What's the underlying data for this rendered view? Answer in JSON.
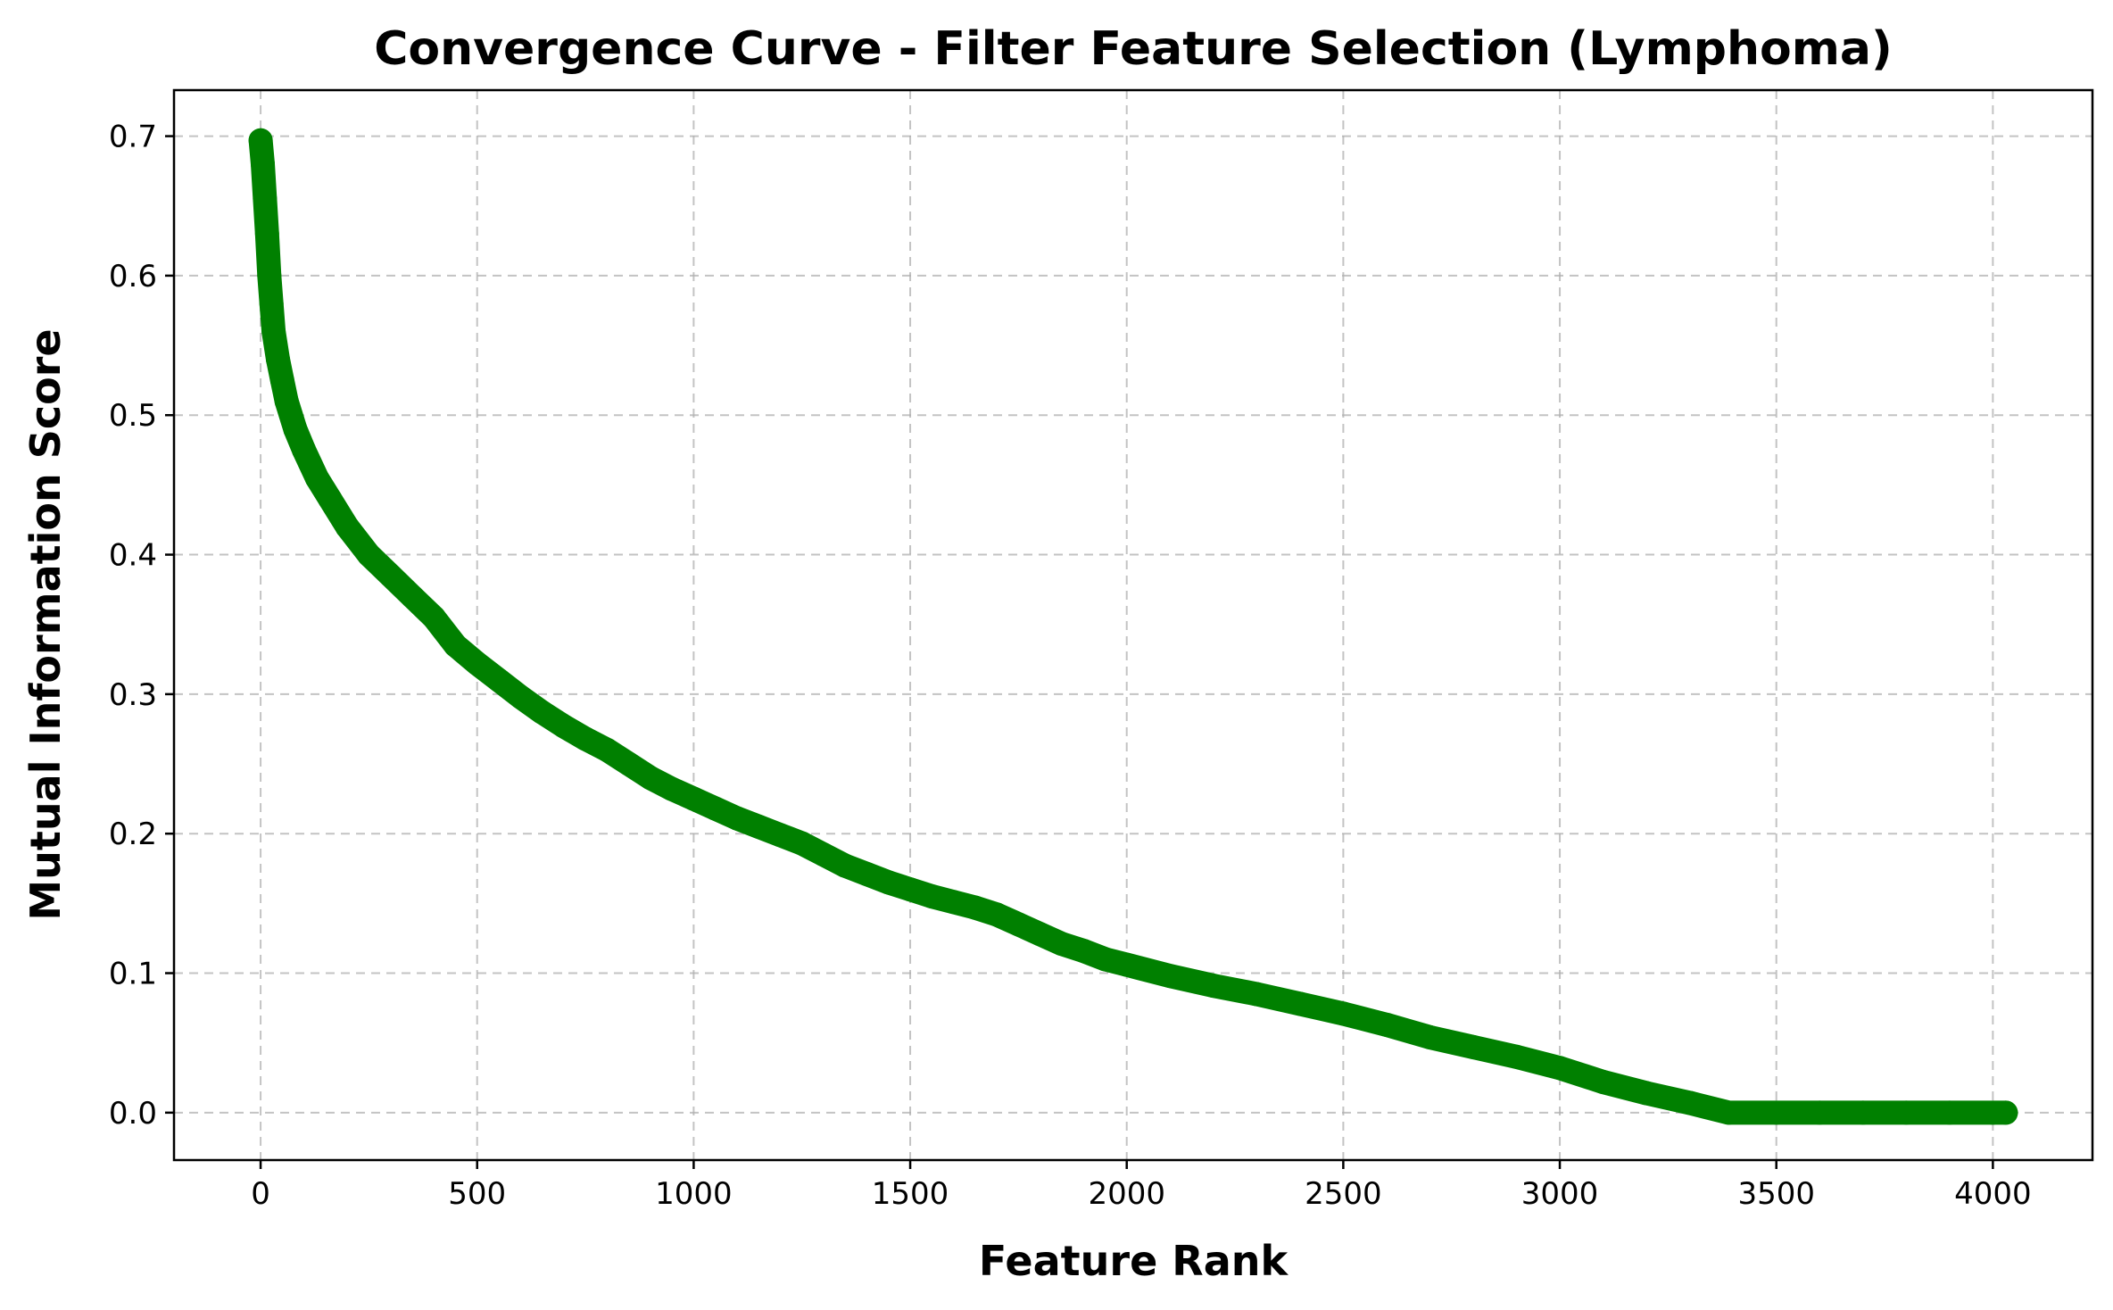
{
  "chart_data": {
    "type": "scatter",
    "title": "Convergence Curve - Filter Feature Selection (Lymphoma)",
    "xlabel": "Feature Rank",
    "ylabel": "Mutual Information Score",
    "xlim": [
      -200,
      4230
    ],
    "ylim": [
      -0.034,
      0.733
    ],
    "xticks": [
      0,
      500,
      1000,
      1500,
      2000,
      2500,
      3000,
      3500,
      4000
    ],
    "yticks": [
      0.0,
      0.1,
      0.2,
      0.3,
      0.4,
      0.5,
      0.6,
      0.7
    ],
    "xtick_labels": [
      "0",
      "500",
      "1000",
      "1500",
      "2000",
      "2500",
      "3000",
      "3500",
      "4000"
    ],
    "ytick_labels": [
      "0.0",
      "0.1",
      "0.2",
      "0.3",
      "0.4",
      "0.5",
      "0.6",
      "0.7"
    ],
    "grid": true,
    "marker_color": "#008000",
    "series": [
      {
        "x": [
          0,
          5,
          10,
          15,
          20,
          25,
          30,
          40,
          50,
          60,
          80,
          100,
          130,
          160,
          200,
          250,
          300,
          350,
          400,
          450,
          500,
          550,
          600,
          650,
          700,
          750,
          800,
          850,
          900,
          950,
          1000,
          1050,
          1100,
          1150,
          1200,
          1250,
          1300,
          1350,
          1400,
          1450,
          1500,
          1550,
          1600,
          1650,
          1700,
          1750,
          1800,
          1850,
          1900,
          1950,
          2000,
          2100,
          2200,
          2300,
          2400,
          2500,
          2600,
          2700,
          2800,
          2900,
          3000,
          3100,
          3200,
          3300,
          3390,
          3500,
          3600,
          3700,
          3800,
          3900,
          4000,
          4030
        ],
        "y": [
          0.697,
          0.68,
          0.655,
          0.63,
          0.6,
          0.58,
          0.56,
          0.54,
          0.525,
          0.51,
          0.49,
          0.475,
          0.455,
          0.44,
          0.42,
          0.4,
          0.385,
          0.37,
          0.355,
          0.335,
          0.322,
          0.31,
          0.298,
          0.287,
          0.277,
          0.268,
          0.26,
          0.25,
          0.24,
          0.232,
          0.225,
          0.218,
          0.211,
          0.205,
          0.199,
          0.193,
          0.185,
          0.177,
          0.171,
          0.165,
          0.16,
          0.155,
          0.151,
          0.147,
          0.142,
          0.135,
          0.128,
          0.121,
          0.116,
          0.11,
          0.106,
          0.098,
          0.091,
          0.085,
          0.078,
          0.071,
          0.063,
          0.054,
          0.047,
          0.04,
          0.032,
          0.022,
          0.014,
          0.007,
          0.0,
          0.0,
          0.0,
          0.0,
          0.0,
          0.0,
          0.0,
          0.0
        ]
      }
    ]
  }
}
